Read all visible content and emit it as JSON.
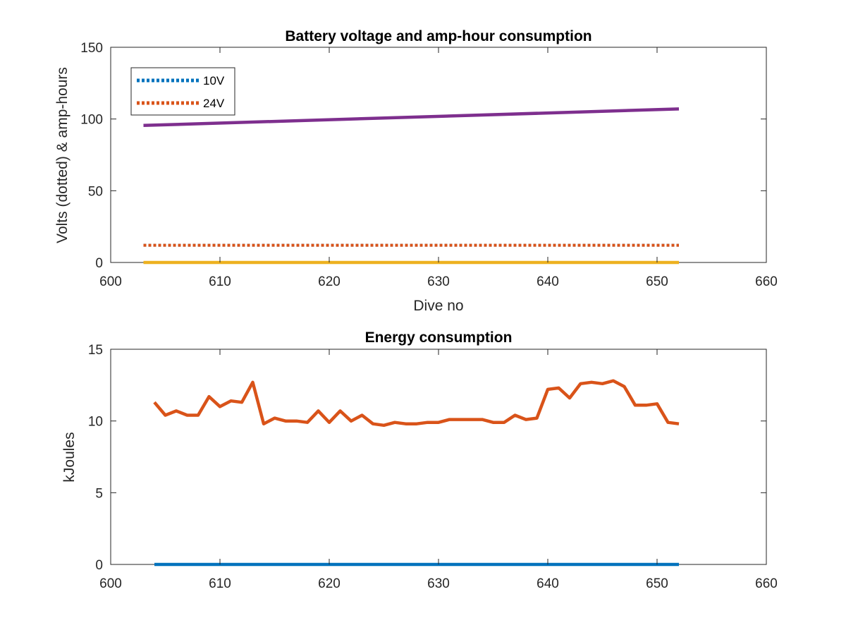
{
  "chart_data": [
    {
      "type": "line",
      "title": "Battery voltage and amp-hour consumption",
      "xlabel": "Dive no",
      "ylabel": "Volts (dotted) & amp-hours",
      "xlim": [
        600,
        660
      ],
      "ylim": [
        0,
        150
      ],
      "xticks": [
        600,
        610,
        620,
        630,
        640,
        650,
        660
      ],
      "yticks": [
        0,
        50,
        100,
        150
      ],
      "legend_position": "top-left",
      "series": [
        {
          "name": "10V",
          "style": "dotted",
          "color": "#0072BD",
          "x": [
            603,
            652
          ],
          "y": [
            12,
            12
          ]
        },
        {
          "name": "24V",
          "style": "dotted",
          "color": "#D95319",
          "x": [
            603,
            652
          ],
          "y": [
            12,
            12
          ]
        },
        {
          "style": "solid",
          "color": "#7E2F8E",
          "x": [
            603,
            652
          ],
          "y": [
            95.5,
            107
          ]
        },
        {
          "style": "solid",
          "color": "#EDB120",
          "x": [
            603,
            652
          ],
          "y": [
            0,
            0
          ]
        }
      ]
    },
    {
      "type": "line",
      "title": "Energy consumption",
      "xlabel": "",
      "ylabel": "kJoules",
      "xlim": [
        600,
        660
      ],
      "ylim": [
        0,
        15
      ],
      "xticks": [
        600,
        610,
        620,
        630,
        640,
        650,
        660
      ],
      "yticks": [
        0,
        5,
        10,
        15
      ],
      "series": [
        {
          "style": "solid",
          "color": "#0072BD",
          "x": [
            604,
            652
          ],
          "y": [
            0,
            0
          ]
        },
        {
          "style": "solid",
          "color": "#D95319",
          "x": [
            604,
            605,
            606,
            607,
            608,
            609,
            610,
            611,
            612,
            613,
            614,
            615,
            616,
            617,
            618,
            619,
            620,
            621,
            622,
            623,
            624,
            625,
            626,
            627,
            628,
            629,
            630,
            631,
            632,
            633,
            634,
            635,
            636,
            637,
            638,
            639,
            640,
            641,
            642,
            643,
            644,
            645,
            646,
            647,
            648,
            649,
            650,
            651,
            652
          ],
          "y": [
            11.3,
            10.4,
            10.7,
            10.4,
            10.4,
            11.7,
            11.0,
            11.4,
            11.3,
            12.7,
            9.8,
            10.2,
            10.0,
            10.0,
            9.9,
            10.7,
            9.9,
            10.7,
            10.0,
            10.4,
            9.8,
            9.7,
            9.9,
            9.8,
            9.8,
            9.9,
            9.9,
            10.1,
            10.1,
            10.1,
            10.1,
            9.9,
            9.9,
            10.4,
            10.1,
            10.2,
            12.2,
            12.3,
            11.6,
            12.6,
            12.7,
            12.6,
            12.8,
            12.4,
            11.1,
            11.1,
            11.2,
            9.9,
            9.8
          ]
        }
      ]
    }
  ]
}
